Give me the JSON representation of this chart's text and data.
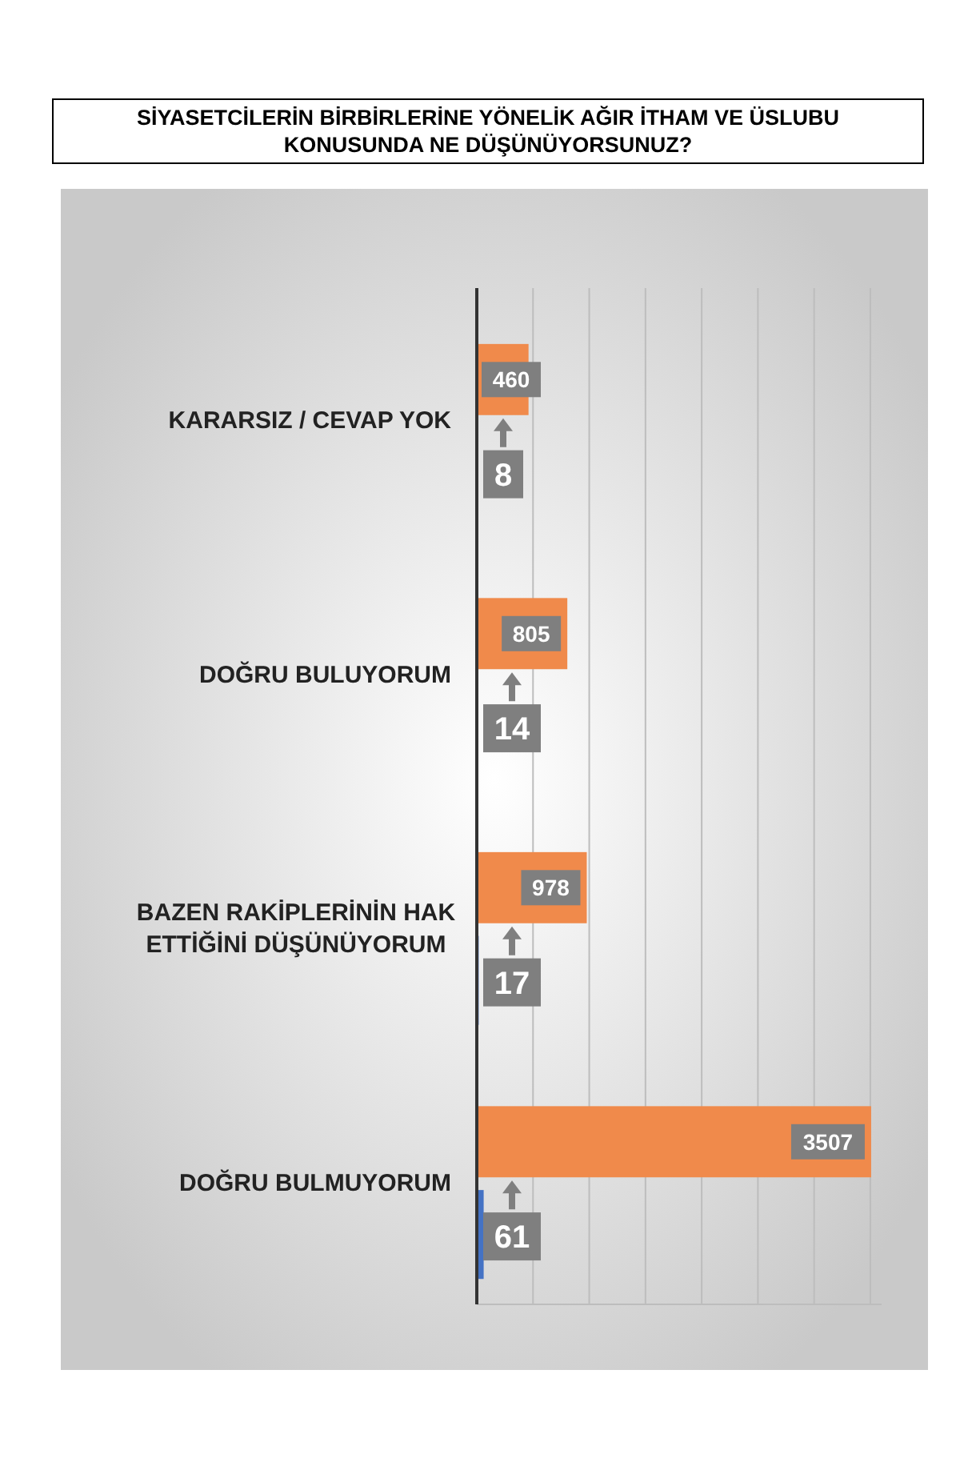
{
  "chart_data": {
    "type": "bar",
    "orientation": "horizontal",
    "title": "SİYASETCİLERİN BİRBİRLERİNE YÖNELİK AĞIR İTHAM VE ÜSLUBU KONUSUNDA NE DÜŞÜNÜYORSUNUZ?",
    "categories": [
      "KARARSIZ / CEVAP YOK",
      "DOĞRU BULUYORUM",
      "BAZEN RAKİPLERİNİN HAK ETTİĞİNİ DÜŞÜNÜYORUM",
      "DOĞRU BULMUYORUM"
    ],
    "series": [
      {
        "color": "#f08a4b",
        "values": [
          460,
          805,
          978,
          3507
        ]
      },
      {
        "color": "#4472c4",
        "values": [
          8,
          14,
          17,
          61
        ]
      }
    ],
    "xlim": [
      0,
      3600
    ],
    "xticks": [
      {
        "value": 0,
        "label": null
      },
      {
        "value": 500,
        "label": null
      },
      {
        "value": 1000,
        "label": null
      },
      {
        "value": 1500,
        "label": null
      },
      {
        "value": 2000,
        "label": null
      },
      {
        "value": 2500,
        "label": null
      },
      {
        "value": 3000,
        "label": null
      },
      {
        "value": 3500,
        "label": null
      }
    ],
    "grid": "x",
    "data_labels": true,
    "tick_labels": "y"
  }
}
